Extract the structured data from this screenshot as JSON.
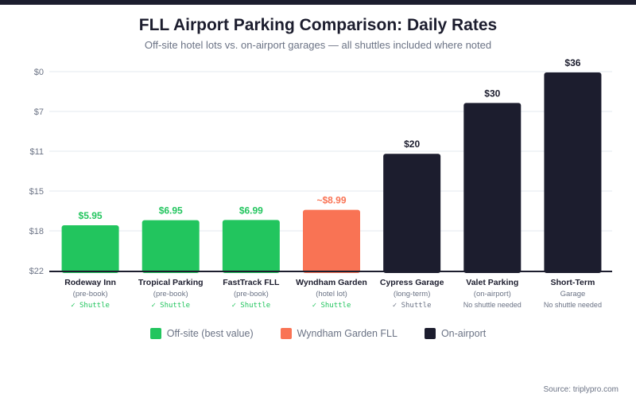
{
  "header": {
    "title": "FLL Airport Parking Comparison: Daily Rates",
    "subtitle": "Off-site hotel lots vs. on-airport garages — all shuttles included where noted"
  },
  "chart_data": {
    "type": "bar",
    "title": "FLL Airport Parking Comparison: Daily Rates",
    "subtitle": "Off-site hotel lots vs. on-airport garages — all shuttles included where noted",
    "xlabel": "",
    "ylabel": "",
    "y_tick_labels": [
      "$0",
      "$7",
      "$11",
      "$15",
      "$18",
      "$22"
    ],
    "grid": true,
    "legend_position": "bottom",
    "categories": [
      "Rodeway Inn",
      "Tropical Parking",
      "FastTrack FLL",
      "Wyndham Garden",
      "Cypress Garage",
      "Valet Parking",
      "Short-Term"
    ],
    "values": [
      5.95,
      6.95,
      6.99,
      8.99,
      20,
      30,
      36
    ],
    "data_labels": [
      "$5.95",
      "$6.95",
      "$6.99",
      "~$8.99",
      "$20",
      "$30",
      "$36"
    ],
    "sublabels": [
      "(pre-book)",
      "(pre-book)",
      "(pre-book)",
      "(hotel lot)",
      "(long-term)",
      "(on-airport)",
      "Garage"
    ],
    "shuttle_notes": [
      "✓ Shuttle",
      "✓ Shuttle",
      "✓ Shuttle",
      "✓ Shuttle",
      "✓ Shuttle",
      "No shuttle needed",
      "No shuttle needed"
    ],
    "groups": [
      "offsite",
      "offsite",
      "offsite",
      "wyndham",
      "onairport",
      "onairport",
      "onairport"
    ],
    "colors": {
      "offsite": "#22c55e",
      "wyndham": "#f97354",
      "onairport": "#1c1d2e",
      "muted": "#6b7385",
      "grid": "#e3e8ef"
    },
    "legend": [
      {
        "label": "Off-site (best value)",
        "group": "offsite"
      },
      {
        "label": "Wyndham Garden FLL",
        "group": "wyndham"
      },
      {
        "label": "On-airport",
        "group": "onairport"
      }
    ]
  },
  "footer": {
    "source": "Source: triplypro.com"
  }
}
